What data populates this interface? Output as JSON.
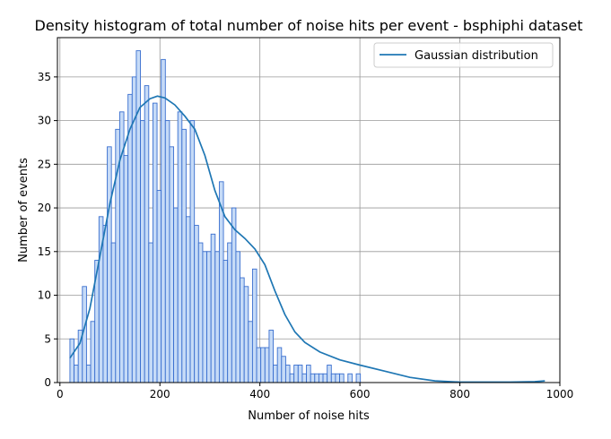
{
  "chart_data": {
    "type": "bar",
    "title": "Density histogram of total number of noise hits per event - bsphiphi dataset",
    "xlabel": "Number of noise hits",
    "ylabel": "Number of events",
    "xlim": [
      -5,
      1000
    ],
    "ylim": [
      0,
      39.5
    ],
    "xticks": [
      0,
      200,
      400,
      600,
      800,
      1000
    ],
    "yticks": [
      0,
      5,
      10,
      15,
      20,
      25,
      30,
      35
    ],
    "grid": true,
    "legend_position": "top-right",
    "colors": {
      "bar_fill": "#c6dbf7",
      "bar_edge": "#3a6fcf",
      "curve": "#1f77b4",
      "grid": "#999999"
    },
    "bins": {
      "start": 20,
      "width": 8.3,
      "values": [
        5,
        2,
        6,
        11,
        2,
        7,
        14,
        19,
        18,
        27,
        16,
        29,
        31,
        26,
        33,
        35,
        38,
        30,
        34,
        16,
        32,
        22,
        37,
        30,
        27,
        20,
        31,
        29,
        19,
        30,
        18,
        16,
        15,
        15,
        17,
        15,
        23,
        14,
        16,
        20,
        15,
        12,
        11,
        7,
        13,
        4,
        4,
        4,
        6,
        2,
        4,
        3,
        2,
        1,
        2,
        2,
        1,
        2,
        1,
        1,
        1,
        1,
        2,
        1,
        1,
        1,
        0,
        1,
        0,
        1,
        0,
        0,
        0,
        0,
        0,
        0,
        0,
        0,
        0,
        0,
        0,
        0,
        0,
        0,
        0,
        0,
        0,
        0,
        0,
        0,
        0,
        0,
        0,
        0,
        0,
        0,
        0,
        0,
        0,
        0,
        0,
        0,
        0,
        0,
        0,
        0,
        0,
        0,
        0,
        0,
        0,
        0,
        0,
        0,
        0,
        0,
        0,
        0,
        0,
        0
      ]
    },
    "series": [
      {
        "name": "Gaussian distribution",
        "type": "line",
        "x": [
          20,
          40,
          60,
          80,
          100,
          120,
          140,
          160,
          180,
          195,
          210,
          230,
          250,
          270,
          290,
          310,
          330,
          350,
          370,
          390,
          410,
          430,
          450,
          470,
          490,
          520,
          560,
          600,
          650,
          700,
          750,
          800,
          850,
          900,
          950,
          970
        ],
        "y": [
          2.8,
          4.5,
          8.5,
          14.5,
          20.5,
          25.5,
          29,
          31.5,
          32.5,
          32.8,
          32.6,
          31.8,
          30.5,
          29,
          26,
          22,
          19,
          17.5,
          16.5,
          15.3,
          13.5,
          10.5,
          7.8,
          5.8,
          4.6,
          3.5,
          2.6,
          2,
          1.3,
          0.6,
          0.2,
          0.05,
          0.05,
          0.05,
          0.1,
          0.2
        ]
      }
    ]
  }
}
